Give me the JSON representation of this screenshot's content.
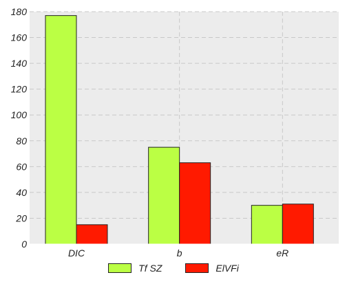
{
  "chart_data": {
    "type": "bar",
    "categories": [
      "DIC",
      "b",
      "eR"
    ],
    "series": [
      {
        "name": "Tf SZ",
        "values": [
          177,
          75,
          30
        ],
        "color": "#bbff44"
      },
      {
        "name": "ElVFi",
        "values": [
          15,
          63,
          31
        ],
        "color": "#ff1a00"
      }
    ],
    "ylim": [
      0,
      180
    ],
    "yticks": [
      0,
      20,
      40,
      60,
      80,
      100,
      120,
      140,
      160,
      180
    ],
    "grid": true,
    "legend": "bottom-center",
    "colors": {
      "plot_background": "#ececec",
      "grid": "#c8c8c8",
      "bar_border": "#222222"
    }
  }
}
